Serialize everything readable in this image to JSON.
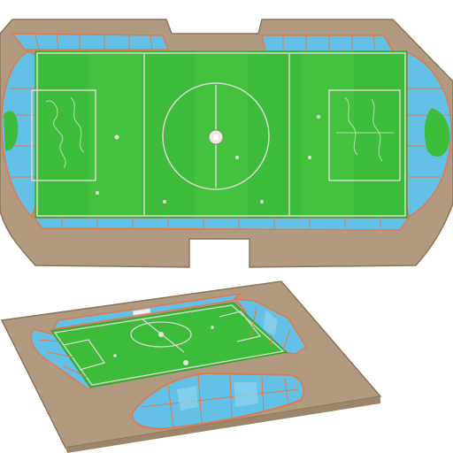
{
  "scene": {
    "subject": "stadium-illustrations",
    "views": [
      "top-down-stadium",
      "perspective-stadium"
    ]
  },
  "colors": {
    "background": "#ffffff",
    "ground": "#b19a7f",
    "ground_dark": "#9c8569",
    "pitch": "#3dbb3a",
    "pitch_light": "#55cc4c",
    "stand": "#63c0e6",
    "stand_light": "#8fd4ee",
    "stand_edge": "#e3784c",
    "line": "#d9d9d0"
  }
}
